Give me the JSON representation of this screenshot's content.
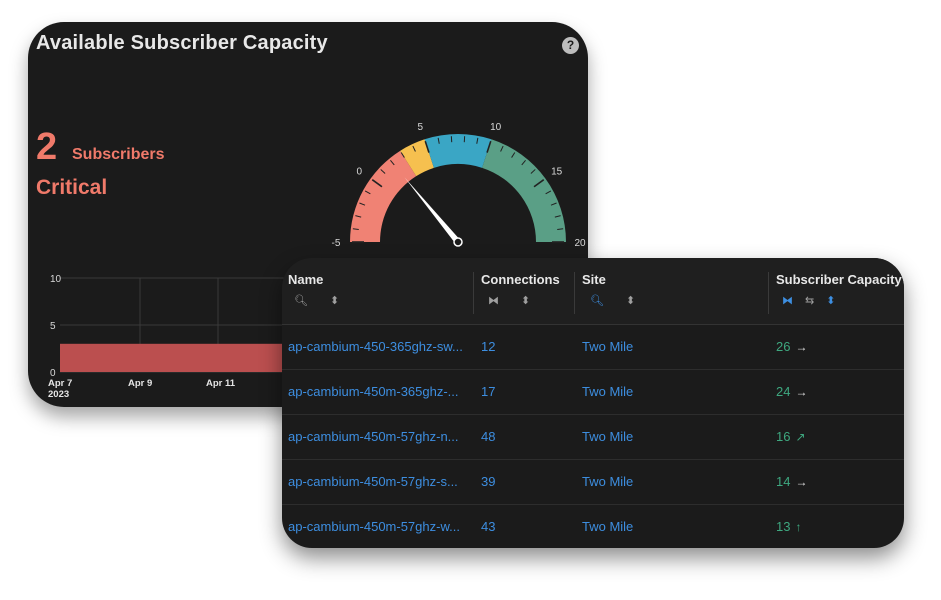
{
  "widget": {
    "title": "Available Subscriber Capacity",
    "help": "?",
    "value": "2",
    "unit": "Subscribers",
    "status": "Critical"
  },
  "gauge": {
    "min": -5,
    "max": 20,
    "value": 2,
    "tick_labels": [
      "-5",
      "0",
      "5",
      "10",
      "15",
      "20"
    ],
    "bands": [
      {
        "from": -5,
        "to": 3,
        "color": "#f08274"
      },
      {
        "from": 3,
        "to": 5,
        "color": "#f6c04f"
      },
      {
        "from": 5,
        "to": 10,
        "color": "#3aa6c5"
      },
      {
        "from": 10,
        "to": 20,
        "color": "#5a9f86"
      }
    ]
  },
  "history": {
    "y_ticks": [
      "10",
      "5",
      "0"
    ],
    "x_ticks": [
      "Apr 7",
      "Apr 9",
      "Apr 11"
    ],
    "year": "2023",
    "bar_value": 3,
    "bar_color": "#bb4f4f"
  },
  "table": {
    "columns": [
      {
        "label": "Name"
      },
      {
        "label": "Connections"
      },
      {
        "label": "Site"
      },
      {
        "label": "Subscriber Capacity"
      }
    ],
    "rows": [
      {
        "name": "ap-cambium-450-365ghz-sw...",
        "connections": "12",
        "site": "Two Mile",
        "capacity": "26",
        "trend": "→"
      },
      {
        "name": "ap-cambium-450m-365ghz-...",
        "connections": "17",
        "site": "Two Mile",
        "capacity": "24",
        "trend": "→"
      },
      {
        "name": "ap-cambium-450m-57ghz-n...",
        "connections": "48",
        "site": "Two Mile",
        "capacity": "16",
        "trend": "↗"
      },
      {
        "name": "ap-cambium-450m-57ghz-s...",
        "connections": "39",
        "site": "Two Mile",
        "capacity": "14",
        "trend": "→"
      },
      {
        "name": "ap-cambium-450m-57ghz-w...",
        "connections": "43",
        "site": "Two Mile",
        "capacity": "13",
        "trend": "↑"
      }
    ]
  },
  "colors": {
    "accent": "#3d8ee0",
    "critical": "#f07a6a",
    "good": "#3ea77f",
    "card_bg": "#1b1b1b"
  }
}
